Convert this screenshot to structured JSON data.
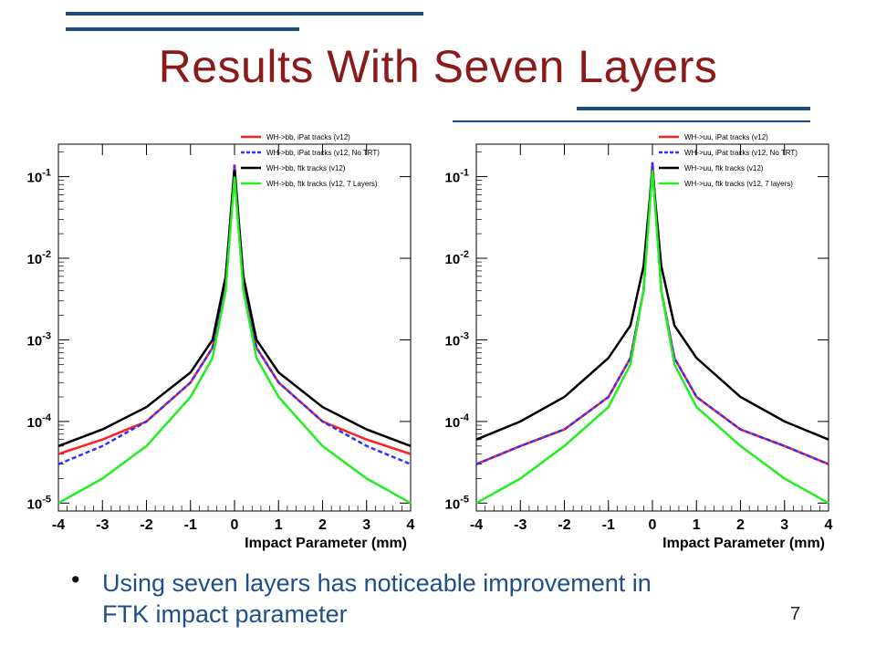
{
  "slide": {
    "title": "Results With Seven Layers",
    "bullet": "Using seven layers has noticeable improvement in FTK impact parameter",
    "page_number": "7"
  },
  "colors": {
    "title": "#8b1a1a",
    "bullet_text": "#1f4e8c",
    "rules": "#1b4a82",
    "ipat": "#ff2020",
    "ipat_notrt": "#3030ff",
    "ftk": "#000000",
    "ftk7": "#22ee22"
  },
  "chart_data": [
    {
      "type": "line",
      "xlabel": "Impact Parameter (mm)",
      "ylabel": "",
      "xlim": [
        -4,
        4
      ],
      "ylim": [
        8e-06,
        0.25
      ],
      "yscale": "log",
      "x_ticks": [
        "-4",
        "-3",
        "-2",
        "-1",
        "0",
        "1",
        "2",
        "3",
        "4"
      ],
      "y_ticks": [
        {
          "label": "10-5",
          "base": "10",
          "exp": "-5",
          "value": 1e-05
        },
        {
          "label": "10-4",
          "base": "10",
          "exp": "-4",
          "value": 0.0001
        },
        {
          "label": "10-3",
          "base": "10",
          "exp": "-3",
          "value": 0.001
        },
        {
          "label": "10-2",
          "base": "10",
          "exp": "-2",
          "value": 0.01
        },
        {
          "label": "10-1",
          "base": "10",
          "exp": "-1",
          "value": 0.1
        }
      ],
      "legend_position": "top-right",
      "series": [
        {
          "name": "WH->bb, iPat tracks (v12)",
          "color": "#ff2020",
          "dash": false,
          "x": [
            -4,
            -3,
            -2,
            -1,
            -0.5,
            -0.2,
            0,
            0.2,
            0.5,
            1,
            2,
            3,
            4
          ],
          "y": [
            4e-05,
            6e-05,
            0.0001,
            0.0003,
            0.0008,
            0.005,
            0.14,
            0.005,
            0.0008,
            0.0003,
            0.0001,
            6e-05,
            4e-05
          ]
        },
        {
          "name": "WH->bb, iPat tracks (v12, No TRT)",
          "color": "#3030ff",
          "dash": true,
          "x": [
            -4,
            -3,
            -2,
            -1,
            -0.5,
            -0.2,
            0,
            0.2,
            0.5,
            1,
            2,
            3,
            4
          ],
          "y": [
            3e-05,
            5e-05,
            0.0001,
            0.0003,
            0.0008,
            0.005,
            0.14,
            0.005,
            0.0008,
            0.0003,
            0.0001,
            5e-05,
            3e-05
          ]
        },
        {
          "name": "WH->bb, ftk tracks (v12)",
          "color": "#000000",
          "dash": false,
          "x": [
            -4,
            -3,
            -2,
            -1,
            -0.5,
            -0.2,
            0,
            0.2,
            0.5,
            1,
            2,
            3,
            4
          ],
          "y": [
            5e-05,
            8e-05,
            0.00015,
            0.0004,
            0.001,
            0.006,
            0.12,
            0.006,
            0.001,
            0.0004,
            0.00015,
            8e-05,
            5e-05
          ]
        },
        {
          "name": "WH->bb, ftk tracks (v12, 7 Layers)",
          "color": "#22ee22",
          "dash": false,
          "x": [
            -4,
            -3,
            -2,
            -1,
            -0.5,
            -0.2,
            0,
            0.2,
            0.5,
            1,
            2,
            3,
            4
          ],
          "y": [
            1e-05,
            2e-05,
            5e-05,
            0.0002,
            0.0006,
            0.004,
            0.1,
            0.004,
            0.0006,
            0.0002,
            5e-05,
            2e-05,
            1e-05
          ]
        }
      ]
    },
    {
      "type": "line",
      "xlabel": "Impact Parameter (mm)",
      "ylabel": "",
      "xlim": [
        -4,
        4
      ],
      "ylim": [
        8e-06,
        0.25
      ],
      "yscale": "log",
      "x_ticks": [
        "-4",
        "-3",
        "-2",
        "-1",
        "0",
        "1",
        "2",
        "3",
        "4"
      ],
      "y_ticks": [
        {
          "label": "10-5",
          "base": "10",
          "exp": "-5",
          "value": 1e-05
        },
        {
          "label": "10-4",
          "base": "10",
          "exp": "-4",
          "value": 0.0001
        },
        {
          "label": "10-3",
          "base": "10",
          "exp": "-3",
          "value": 0.001
        },
        {
          "label": "10-2",
          "base": "10",
          "exp": "-2",
          "value": 0.01
        },
        {
          "label": "10-1",
          "base": "10",
          "exp": "-1",
          "value": 0.1
        }
      ],
      "legend_position": "top-right",
      "series": [
        {
          "name": "WH->uu, iPat tracks (v12)",
          "color": "#ff2020",
          "dash": false,
          "x": [
            -4,
            -3,
            -2,
            -1,
            -0.5,
            -0.2,
            0,
            0.2,
            0.5,
            1,
            2,
            3,
            4
          ],
          "y": [
            3e-05,
            5e-05,
            8e-05,
            0.0002,
            0.0006,
            0.004,
            0.15,
            0.004,
            0.0006,
            0.0002,
            8e-05,
            5e-05,
            3e-05
          ]
        },
        {
          "name": "WH->uu, iPat tracks (v12, No TRT)",
          "color": "#3030ff",
          "dash": true,
          "x": [
            -4,
            -3,
            -2,
            -1,
            -0.5,
            -0.2,
            0,
            0.2,
            0.5,
            1,
            2,
            3,
            4
          ],
          "y": [
            3e-05,
            5e-05,
            8e-05,
            0.0002,
            0.0006,
            0.004,
            0.15,
            0.004,
            0.0006,
            0.0002,
            8e-05,
            5e-05,
            3e-05
          ]
        },
        {
          "name": "WH->uu, ftk tracks (v12)",
          "color": "#000000",
          "dash": false,
          "x": [
            -4,
            -3,
            -2,
            -1,
            -0.5,
            -0.2,
            0,
            0.2,
            0.5,
            1,
            2,
            3,
            4
          ],
          "y": [
            6e-05,
            0.0001,
            0.0002,
            0.0006,
            0.0015,
            0.008,
            0.12,
            0.008,
            0.0015,
            0.0006,
            0.0002,
            0.0001,
            6e-05
          ]
        },
        {
          "name": "WH->uu, ftk tracks (v12, 7 layers)",
          "color": "#22ee22",
          "dash": false,
          "x": [
            -4,
            -3,
            -2,
            -1,
            -0.5,
            -0.2,
            0,
            0.2,
            0.5,
            1,
            2,
            3,
            4
          ],
          "y": [
            1e-05,
            2e-05,
            5e-05,
            0.00015,
            0.0005,
            0.004,
            0.12,
            0.004,
            0.0005,
            0.00015,
            5e-05,
            2e-05,
            1e-05
          ]
        }
      ]
    }
  ]
}
